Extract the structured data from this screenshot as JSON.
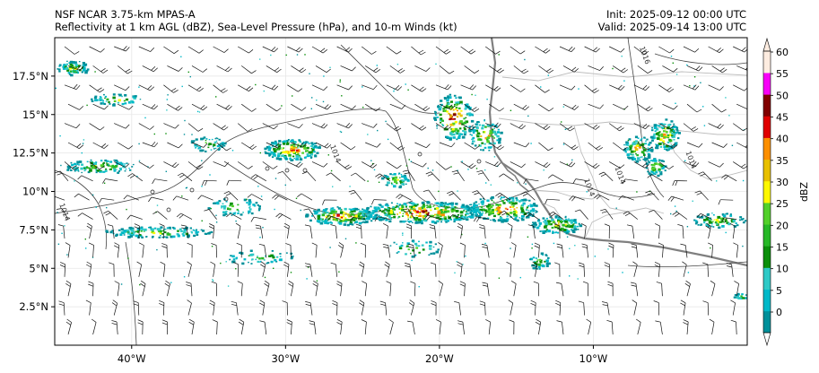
{
  "header": {
    "model": "NSF NCAR 3.75-km MPAS-A",
    "fields": "Reflectivity at 1 km AGL (dBZ), Sea-Level Pressure (hPa), and 10-m Winds (kt)",
    "init": "Init: 2025-09-12 00:00 UTC",
    "valid": "Valid: 2025-09-14 13:00 UTC"
  },
  "map": {
    "lon_range": [
      -45,
      0
    ],
    "lat_range": [
      0,
      20
    ],
    "lon_ticks": [
      {
        "value": -40,
        "label": "40°W"
      },
      {
        "value": -30,
        "label": "30°W"
      },
      {
        "value": -20,
        "label": "20°W"
      },
      {
        "value": -10,
        "label": "10°W"
      }
    ],
    "lat_ticks": [
      {
        "value": 17.5,
        "label": "17.5°N"
      },
      {
        "value": 15,
        "label": "15°N"
      },
      {
        "value": 12.5,
        "label": "12.5°N"
      },
      {
        "value": 10,
        "label": "10°N"
      },
      {
        "value": 7.5,
        "label": "7.5°N"
      },
      {
        "value": 5,
        "label": "5°N"
      },
      {
        "value": 2.5,
        "label": "2.5°N"
      }
    ],
    "isobar_labels": [
      {
        "text": "1014",
        "lon": -26.9,
        "lat": 12.4
      },
      {
        "text": "1014",
        "lon": -10.4,
        "lat": 10.2
      },
      {
        "text": "1014",
        "lon": -44.5,
        "lat": 8.6
      },
      {
        "text": "1014",
        "lon": -8.4,
        "lat": 11.0
      },
      {
        "text": "1014",
        "lon": -3.8,
        "lat": 12.0
      },
      {
        "text": "1016",
        "lon": -6.8,
        "lat": 18.8
      }
    ]
  },
  "colorbar": {
    "label": "dBZ",
    "levels": [
      0,
      5,
      10,
      15,
      20,
      25,
      30,
      35,
      40,
      45,
      50,
      55,
      60
    ],
    "colors": [
      "#04e9e7",
      "#019ff4",
      "#0300f4",
      "#02fd02",
      "#01c501",
      "#008e00",
      "#fdf802",
      "#e5bc00",
      "#fd9500",
      "#fd0000",
      "#d40000",
      "#bc0000",
      "#f800fd",
      "#9854c6",
      "#fdf0e8"
    ],
    "segment_colors": [
      "#00909a",
      "#00b8c8",
      "#2ec9c6",
      "#0b8f0b",
      "#27b827",
      "#52d02a",
      "#fdf800",
      "#e8c000",
      "#fc8f00",
      "#e00000",
      "#800000",
      "#f800f8",
      "#fdece0"
    ],
    "over_color": "#fdece0",
    "under_color": "#00909a"
  }
}
